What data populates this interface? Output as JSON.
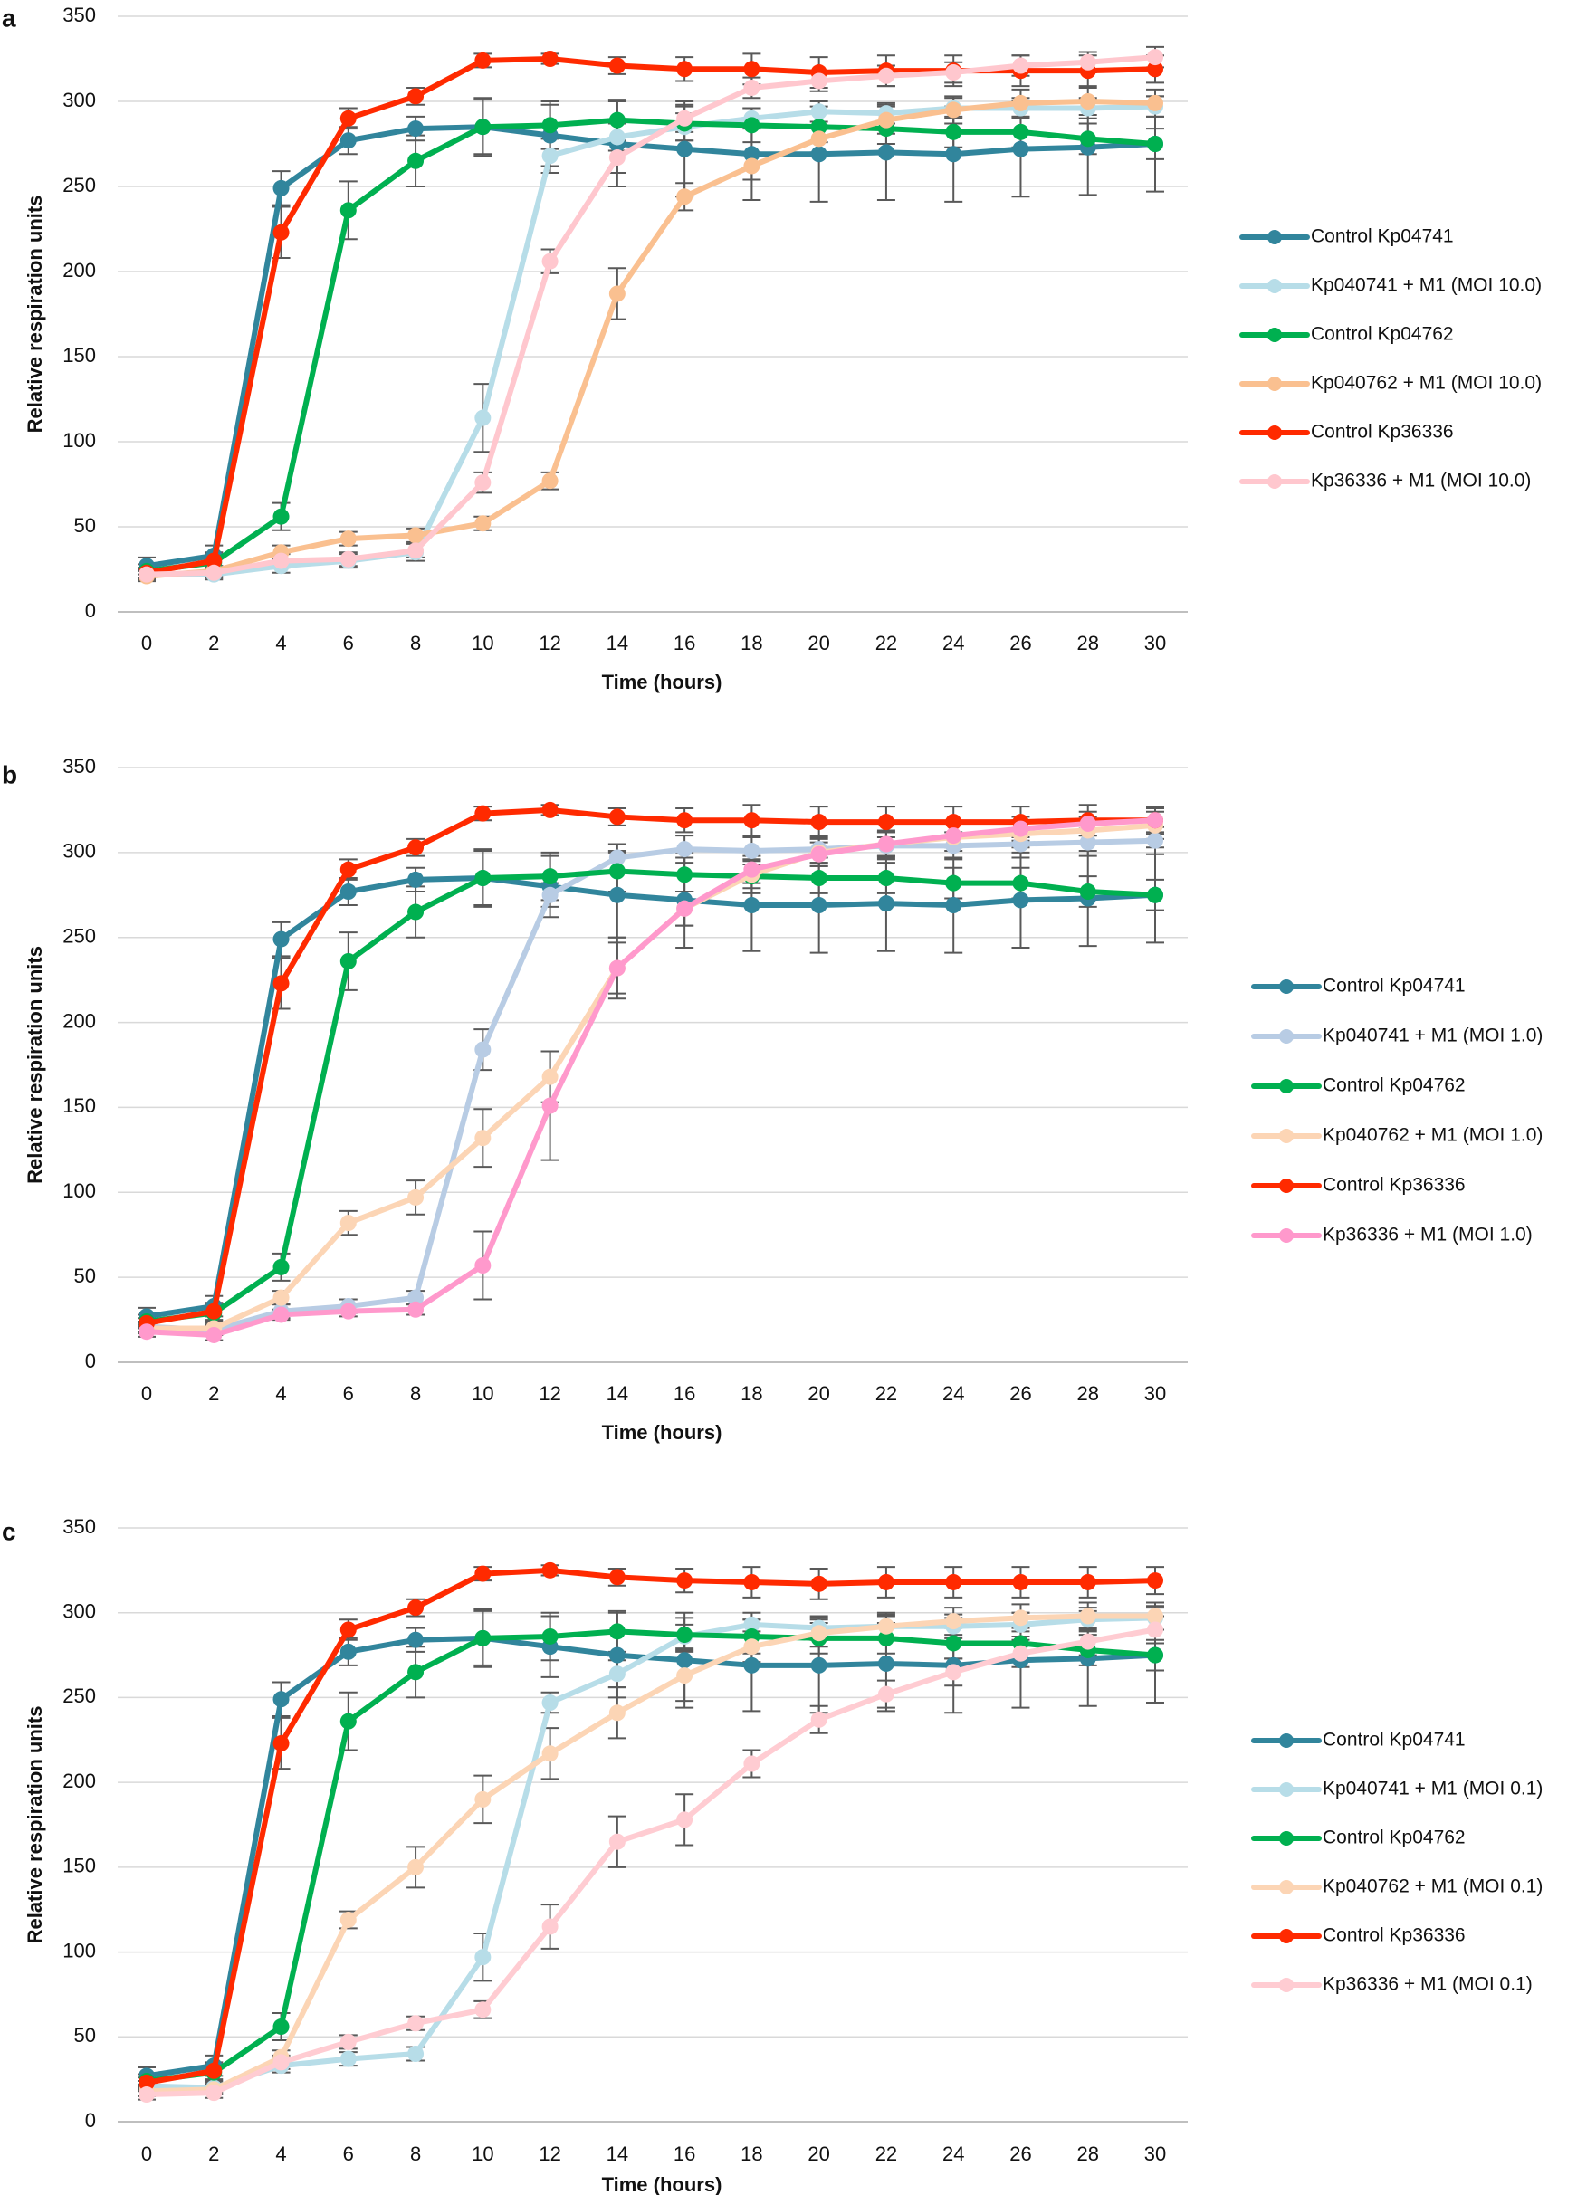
{
  "chart_data": [
    {
      "type": "line",
      "panel": "a",
      "xlabel": "Time (hours)",
      "ylabel": "Relative respiration units",
      "ylim": [
        0,
        350
      ],
      "yticks": [
        0,
        50,
        100,
        150,
        200,
        250,
        300,
        350
      ],
      "x": [
        0,
        2,
        4,
        6,
        8,
        10,
        12,
        14,
        16,
        18,
        20,
        22,
        24,
        26,
        28,
        30
      ],
      "legend_position": "right",
      "series": [
        {
          "name": "Control Kp04741",
          "color": "#31859c",
          "values": [
            27,
            33,
            249,
            277,
            284,
            285,
            280,
            275,
            272,
            269,
            269,
            270,
            269,
            272,
            273,
            275
          ],
          "errors": [
            5,
            6,
            10,
            8,
            7,
            16,
            18,
            25,
            28,
            27,
            28,
            28,
            28,
            28,
            28,
            28
          ]
        },
        {
          "name": "Kp040741 + M1 (MOI 10.0)",
          "color": "#b7dde8",
          "values": [
            22,
            22,
            27,
            30,
            35,
            114,
            268,
            279,
            285,
            290,
            294,
            293,
            296,
            296,
            296,
            297
          ],
          "errors": [
            3,
            3,
            4,
            4,
            5,
            20,
            10,
            8,
            8,
            6,
            6,
            6,
            6,
            6,
            6,
            6
          ]
        },
        {
          "name": "Control Kp04762",
          "color": "#00b050",
          "values": [
            24,
            29,
            56,
            236,
            265,
            285,
            286,
            289,
            287,
            286,
            285,
            284,
            282,
            282,
            278,
            275
          ],
          "errors": [
            4,
            5,
            8,
            17,
            15,
            17,
            14,
            12,
            10,
            10,
            9,
            9,
            9,
            9,
            9,
            9
          ]
        },
        {
          "name": "Kp040762 + M1 (MOI 10.0)",
          "color": "#fac090",
          "values": [
            21,
            24,
            35,
            43,
            45,
            52,
            77,
            187,
            244,
            262,
            278,
            289,
            295,
            299,
            300,
            299
          ],
          "errors": [
            3,
            3,
            4,
            4,
            4,
            4,
            5,
            15,
            8,
            8,
            8,
            8,
            8,
            8,
            8,
            8
          ]
        },
        {
          "name": "Control Kp36336",
          "color": "#ff2a00",
          "values": [
            23,
            30,
            223,
            290,
            303,
            324,
            325,
            321,
            319,
            319,
            317,
            318,
            318,
            318,
            318,
            319
          ],
          "errors": [
            3,
            5,
            15,
            6,
            5,
            4,
            3,
            5,
            7,
            9,
            9,
            9,
            9,
            9,
            9,
            8
          ]
        },
        {
          "name": "Kp36336 + M1 (MOI 10.0)",
          "color": "#ffc7ce",
          "values": [
            22,
            23,
            30,
            31,
            36,
            76,
            206,
            267,
            290,
            308,
            312,
            315,
            317,
            321,
            323,
            326
          ],
          "errors": [
            3,
            3,
            4,
            4,
            4,
            6,
            7,
            9,
            8,
            6,
            6,
            6,
            6,
            6,
            6,
            6
          ]
        }
      ]
    },
    {
      "type": "line",
      "panel": "b",
      "xlabel": "Time (hours)",
      "ylabel": "Relative respiration units",
      "ylim": [
        0,
        350
      ],
      "yticks": [
        0,
        50,
        100,
        150,
        200,
        250,
        300,
        350
      ],
      "x": [
        0,
        2,
        4,
        6,
        8,
        10,
        12,
        14,
        16,
        18,
        20,
        22,
        24,
        26,
        28,
        30
      ],
      "legend_position": "right",
      "series": [
        {
          "name": "Control Kp04741",
          "color": "#31859c",
          "values": [
            27,
            33,
            249,
            277,
            284,
            285,
            280,
            275,
            272,
            269,
            269,
            270,
            269,
            272,
            273,
            275
          ],
          "errors": [
            5,
            6,
            10,
            8,
            7,
            16,
            18,
            25,
            28,
            27,
            28,
            28,
            28,
            28,
            28,
            28
          ]
        },
        {
          "name": "Kp040741 + M1 (MOI 1.0)",
          "color": "#b8cce4",
          "values": [
            21,
            19,
            30,
            33,
            38,
            184,
            275,
            297,
            302,
            301,
            302,
            304,
            304,
            305,
            306,
            307
          ],
          "errors": [
            3,
            3,
            4,
            4,
            4,
            12,
            7,
            8,
            8,
            8,
            8,
            8,
            8,
            8,
            8,
            8
          ]
        },
        {
          "name": "Control Kp04762",
          "color": "#00b050",
          "values": [
            24,
            29,
            56,
            236,
            265,
            285,
            286,
            289,
            287,
            286,
            285,
            285,
            282,
            282,
            277,
            275
          ],
          "errors": [
            4,
            5,
            8,
            17,
            15,
            17,
            14,
            12,
            10,
            10,
            9,
            9,
            9,
            9,
            9,
            9
          ]
        },
        {
          "name": "Kp040762 + M1 (MOI 1.0)",
          "color": "#fcd5b5",
          "values": [
            20,
            20,
            38,
            82,
            97,
            132,
            168,
            232,
            267,
            287,
            300,
            305,
            309,
            311,
            313,
            316
          ],
          "errors": [
            3,
            3,
            4,
            7,
            10,
            17,
            15,
            15,
            10,
            8,
            8,
            8,
            8,
            8,
            8,
            8
          ]
        },
        {
          "name": "Control Kp36336",
          "color": "#ff2a00",
          "values": [
            23,
            30,
            223,
            290,
            303,
            323,
            325,
            321,
            319,
            319,
            318,
            318,
            318,
            318,
            319,
            319
          ],
          "errors": [
            3,
            5,
            15,
            6,
            5,
            4,
            3,
            5,
            7,
            9,
            9,
            9,
            9,
            9,
            9,
            8
          ]
        },
        {
          "name": "Kp36336 + M1 (MOI 1.0)",
          "color": "#ff99cc",
          "values": [
            18,
            16,
            28,
            30,
            31,
            57,
            151,
            232,
            267,
            290,
            299,
            305,
            310,
            314,
            317,
            319
          ],
          "errors": [
            3,
            3,
            3,
            3,
            3,
            20,
            32,
            18,
            10,
            8,
            7,
            7,
            7,
            7,
            7,
            7
          ]
        }
      ]
    },
    {
      "type": "line",
      "panel": "c",
      "xlabel": "Time (hours)",
      "ylabel": "Relative respiration units",
      "ylim": [
        0,
        350
      ],
      "yticks": [
        0,
        50,
        100,
        150,
        200,
        250,
        300,
        350
      ],
      "x": [
        0,
        2,
        4,
        6,
        8,
        10,
        12,
        14,
        16,
        18,
        20,
        22,
        24,
        26,
        28,
        30
      ],
      "legend_position": "right",
      "series": [
        {
          "name": "Control Kp04741",
          "color": "#31859c",
          "values": [
            27,
            33,
            249,
            277,
            284,
            285,
            280,
            275,
            272,
            269,
            269,
            270,
            269,
            272,
            273,
            275
          ],
          "errors": [
            5,
            6,
            10,
            8,
            7,
            16,
            18,
            25,
            28,
            27,
            28,
            28,
            28,
            28,
            28,
            28
          ]
        },
        {
          "name": "Kp040741 + M1 (MOI 0.1)",
          "color": "#b7dde8",
          "values": [
            21,
            20,
            33,
            37,
            40,
            97,
            247,
            264,
            286,
            293,
            291,
            292,
            292,
            293,
            296,
            297
          ],
          "errors": [
            3,
            3,
            4,
            4,
            4,
            14,
            6,
            8,
            7,
            7,
            7,
            7,
            7,
            7,
            7,
            7
          ]
        },
        {
          "name": "Control Kp04762",
          "color": "#00b050",
          "values": [
            24,
            29,
            56,
            236,
            265,
            285,
            286,
            289,
            287,
            286,
            285,
            285,
            282,
            282,
            278,
            275
          ],
          "errors": [
            4,
            5,
            8,
            17,
            15,
            17,
            14,
            12,
            10,
            10,
            9,
            9,
            9,
            9,
            9,
            9
          ]
        },
        {
          "name": "Kp040762 + M1 (MOI 0.1)",
          "color": "#fcd5b5",
          "values": [
            18,
            19,
            38,
            119,
            150,
            190,
            217,
            241,
            263,
            280,
            288,
            292,
            295,
            297,
            298,
            298
          ],
          "errors": [
            3,
            3,
            4,
            5,
            12,
            14,
            15,
            15,
            15,
            9,
            8,
            8,
            8,
            8,
            8,
            8
          ]
        },
        {
          "name": "Control Kp36336",
          "color": "#ff2a00",
          "values": [
            23,
            30,
            223,
            290,
            303,
            323,
            325,
            321,
            319,
            318,
            317,
            318,
            318,
            318,
            318,
            319
          ],
          "errors": [
            3,
            5,
            15,
            6,
            5,
            4,
            3,
            5,
            7,
            9,
            9,
            9,
            9,
            9,
            9,
            8
          ]
        },
        {
          "name": "Kp36336 + M1 (MOI 0.1)",
          "color": "#ffccd2",
          "values": [
            16,
            17,
            35,
            47,
            58,
            66,
            115,
            165,
            178,
            211,
            237,
            252,
            265,
            276,
            283,
            290
          ],
          "errors": [
            3,
            3,
            4,
            4,
            4,
            5,
            13,
            15,
            15,
            8,
            8,
            8,
            8,
            8,
            8,
            8
          ]
        }
      ]
    }
  ]
}
